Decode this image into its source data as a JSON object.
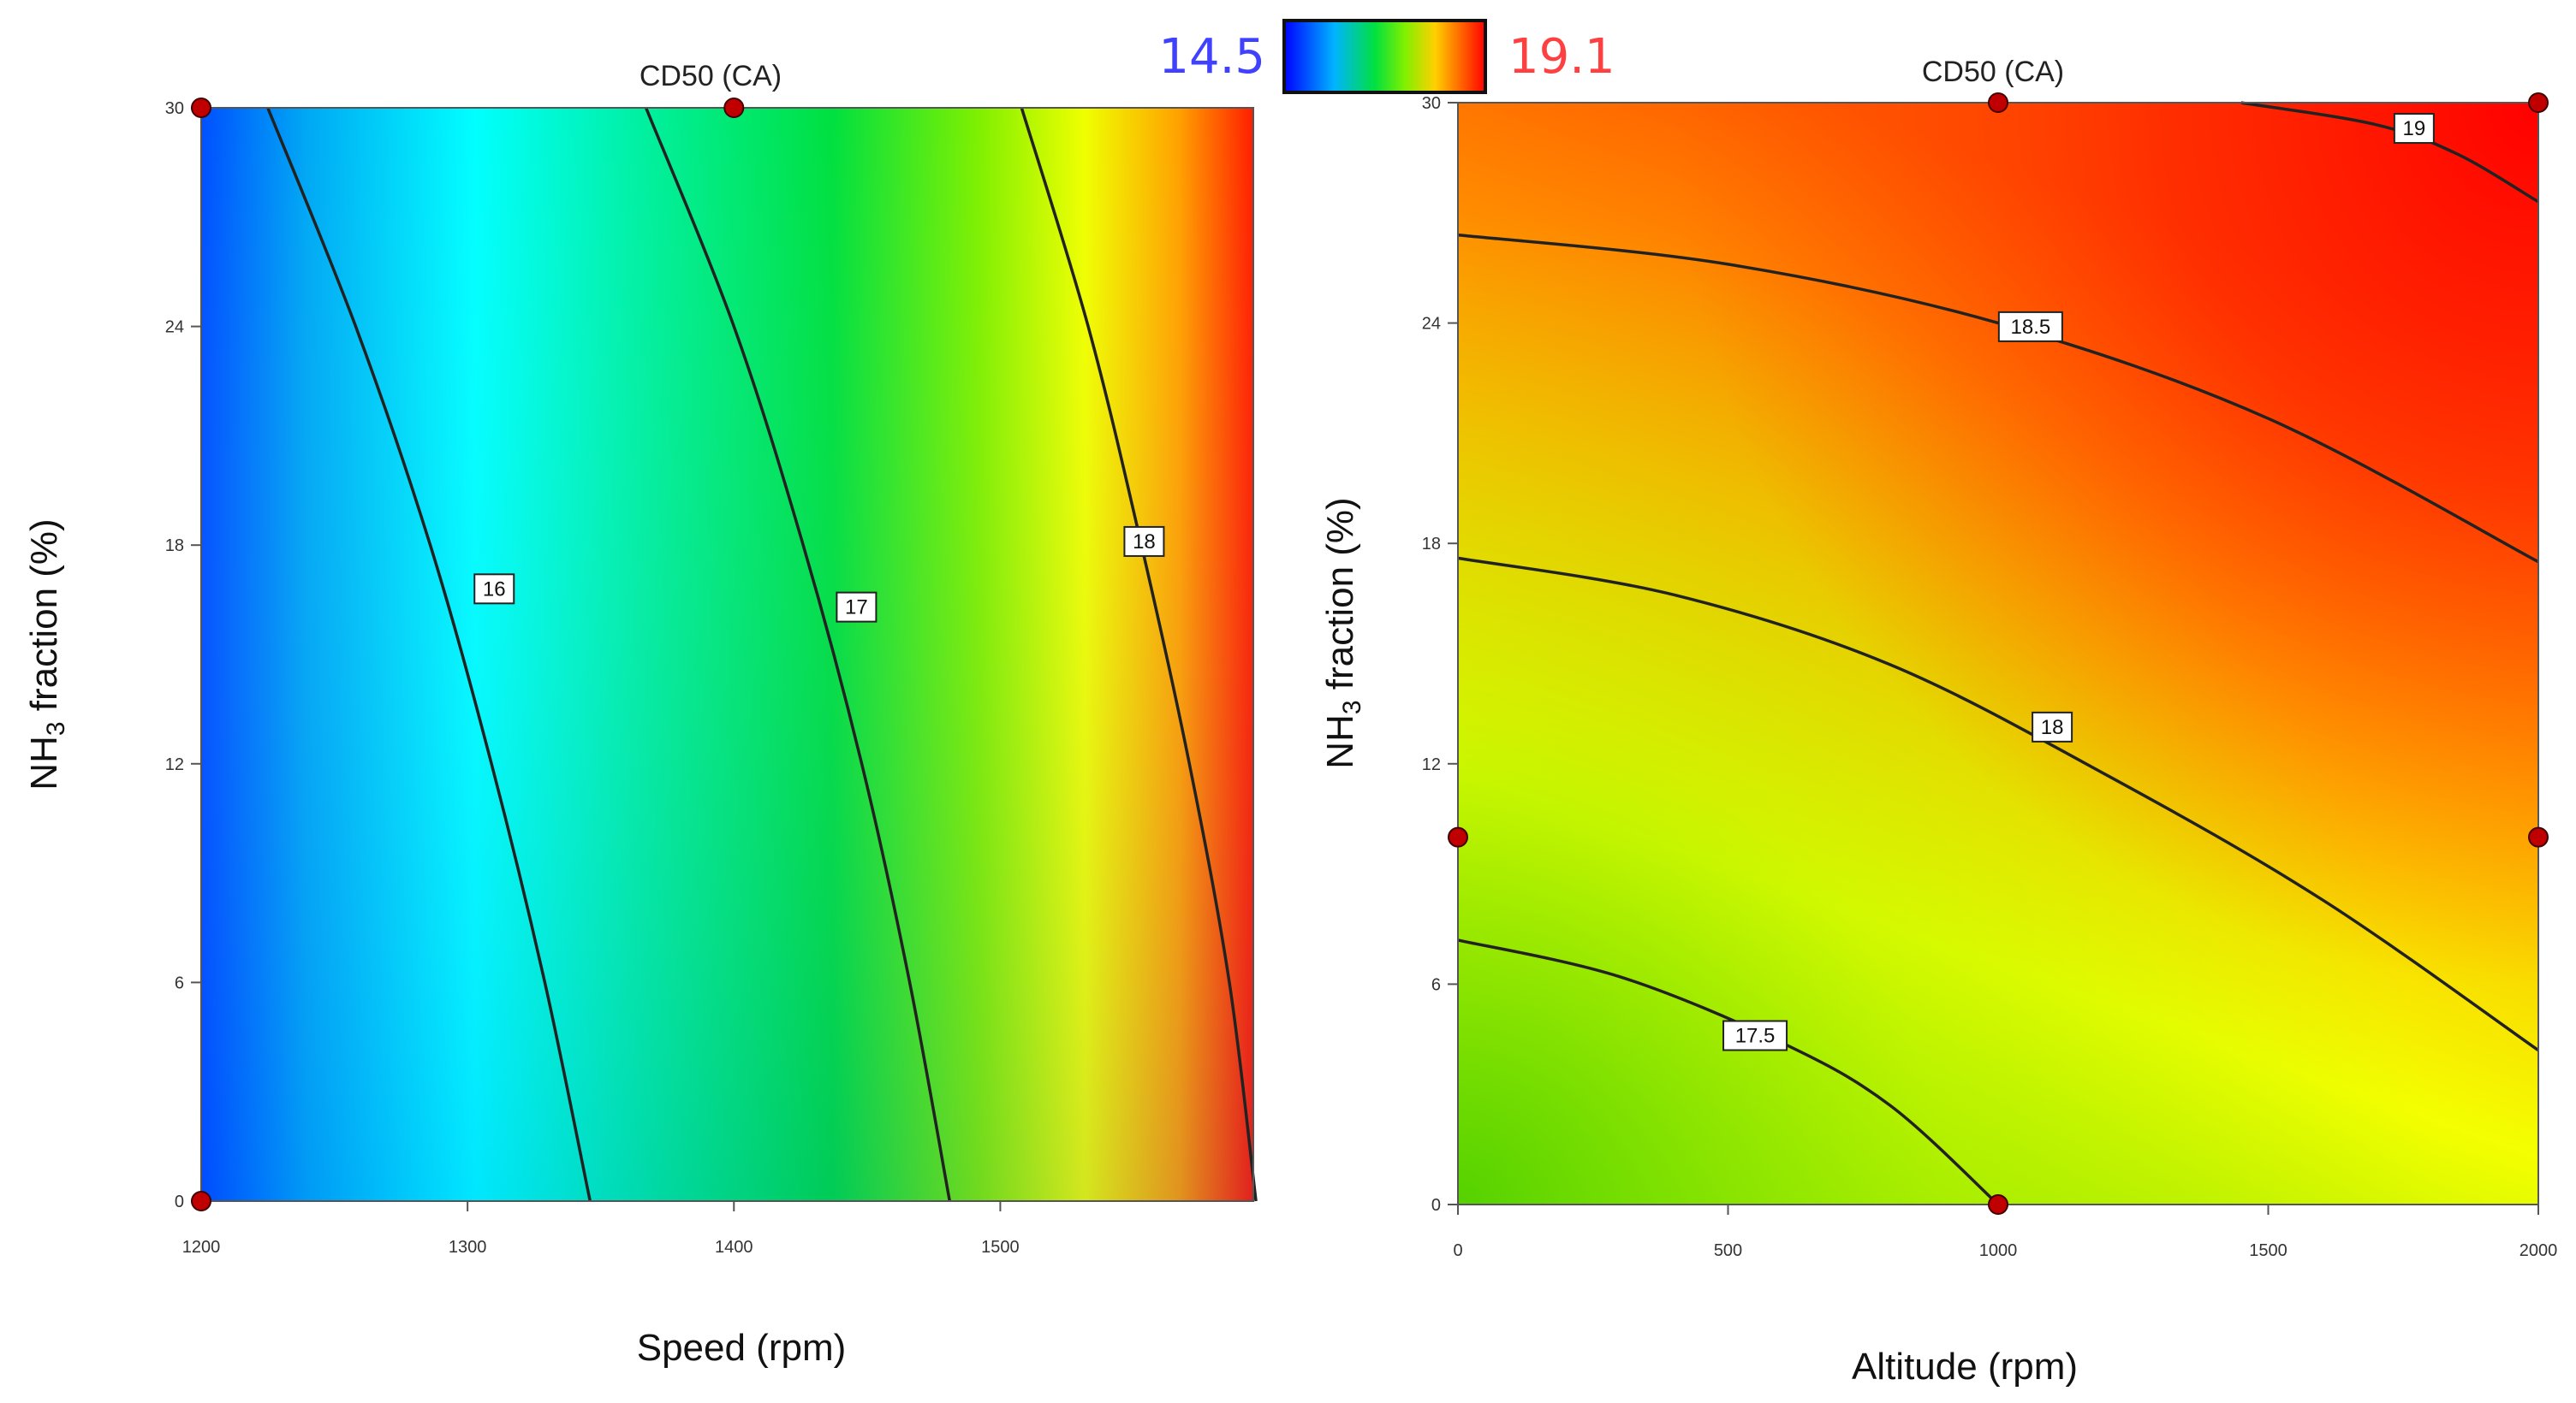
{
  "colorscale": {
    "min_label": "14.5",
    "max_label": "19.1",
    "min": 14.5,
    "max": 19.1,
    "min_color": "#4040ff",
    "max_color": "#ff4040"
  },
  "chart_data": [
    {
      "type": "contour",
      "title": "CD50 (CA)",
      "xlabel": "Speed (rpm)",
      "ylabel_main": "NH",
      "ylabel_sub": "3",
      "ylabel_rest": " fraction  (%)",
      "xlim": [
        1200,
        1595
      ],
      "ylim": [
        0,
        30
      ],
      "xticks": [
        {
          "value": 1200,
          "label": "1200"
        },
        {
          "value": 1300,
          "label": "1300"
        },
        {
          "value": 1400,
          "label": "1400"
        },
        {
          "value": 1500,
          "label": "1500"
        }
      ],
      "yticks": [
        {
          "value": 0,
          "label": "0"
        },
        {
          "value": 6,
          "label": "6"
        },
        {
          "value": 12,
          "label": "12"
        },
        {
          "value": 18,
          "label": "18"
        },
        {
          "value": 24,
          "label": "24"
        },
        {
          "value": 30,
          "label": "30"
        }
      ],
      "contours": [
        {
          "level": "16",
          "points": [
            [
              1225,
              30
            ],
            [
              1258,
              24
            ],
            [
              1286,
              18
            ],
            [
              1309,
              12
            ],
            [
              1329,
              6
            ],
            [
              1346,
              0
            ]
          ],
          "label_at": [
            1310,
            16.8
          ]
        },
        {
          "level": "17",
          "points": [
            [
              1367,
              30
            ],
            [
              1400,
              24
            ],
            [
              1426,
              18
            ],
            [
              1448,
              12
            ],
            [
              1466,
              6
            ],
            [
              1481,
              0
            ]
          ],
          "label_at": [
            1446,
            16.3
          ]
        },
        {
          "level": "18",
          "points": [
            [
              1508,
              30
            ],
            [
              1533,
              24
            ],
            [
              1553,
              18
            ],
            [
              1571,
              12
            ],
            [
              1586,
              6
            ],
            [
              1596,
              0
            ]
          ],
          "label_at": [
            1554,
            18.1
          ]
        }
      ],
      "points": [
        [
          1200,
          30
        ],
        [
          1400,
          30
        ],
        [
          1200,
          0
        ]
      ]
    },
    {
      "type": "contour",
      "title": "CD50 (CA)",
      "xlabel": "Altitude (rpm)",
      "ylabel_main": "NH",
      "ylabel_sub": "3",
      "ylabel_rest": " fraction  (%)",
      "xlim": [
        0,
        2000
      ],
      "ylim": [
        0,
        30
      ],
      "xticks": [
        {
          "value": 0,
          "label": "0"
        },
        {
          "value": 500,
          "label": "500"
        },
        {
          "value": 1000,
          "label": "1000"
        },
        {
          "value": 1500,
          "label": "1500"
        },
        {
          "value": 2000,
          "label": "2000"
        }
      ],
      "yticks": [
        {
          "value": 0,
          "label": "0"
        },
        {
          "value": 6,
          "label": "6"
        },
        {
          "value": 12,
          "label": "12"
        },
        {
          "value": 18,
          "label": "18"
        },
        {
          "value": 24,
          "label": "24"
        },
        {
          "value": 30,
          "label": "30"
        }
      ],
      "contours": [
        {
          "level": "17.5",
          "points": [
            [
              0,
              7.2
            ],
            [
              300,
              6.2
            ],
            [
              600,
              4.4
            ],
            [
              800,
              2.7
            ],
            [
              1000,
              0
            ]
          ],
          "label_at": [
            550,
            4.6
          ]
        },
        {
          "level": "18",
          "points": [
            [
              0,
              17.6
            ],
            [
              400,
              16.6
            ],
            [
              800,
              14.7
            ],
            [
              1200,
              11.7
            ],
            [
              1600,
              8.3
            ],
            [
              2000,
              4.2
            ]
          ],
          "label_at": [
            1100,
            13.0
          ]
        },
        {
          "level": "18.5",
          "points": [
            [
              0,
              26.4
            ],
            [
              500,
              25.6
            ],
            [
              1000,
              24.0
            ],
            [
              1500,
              21.4
            ],
            [
              2000,
              17.5
            ]
          ],
          "label_at": [
            1060,
            23.9
          ]
        },
        {
          "level": "19",
          "points": [
            [
              1450,
              30
            ],
            [
              1700,
              29.4
            ],
            [
              1850,
              28.6
            ],
            [
              2000,
              27.3
            ]
          ],
          "label_at": [
            1770,
            29.3
          ]
        }
      ],
      "points": [
        [
          1000,
          30
        ],
        [
          2000,
          30
        ],
        [
          0,
          10
        ],
        [
          2000,
          10
        ],
        [
          1000,
          0
        ]
      ]
    }
  ]
}
